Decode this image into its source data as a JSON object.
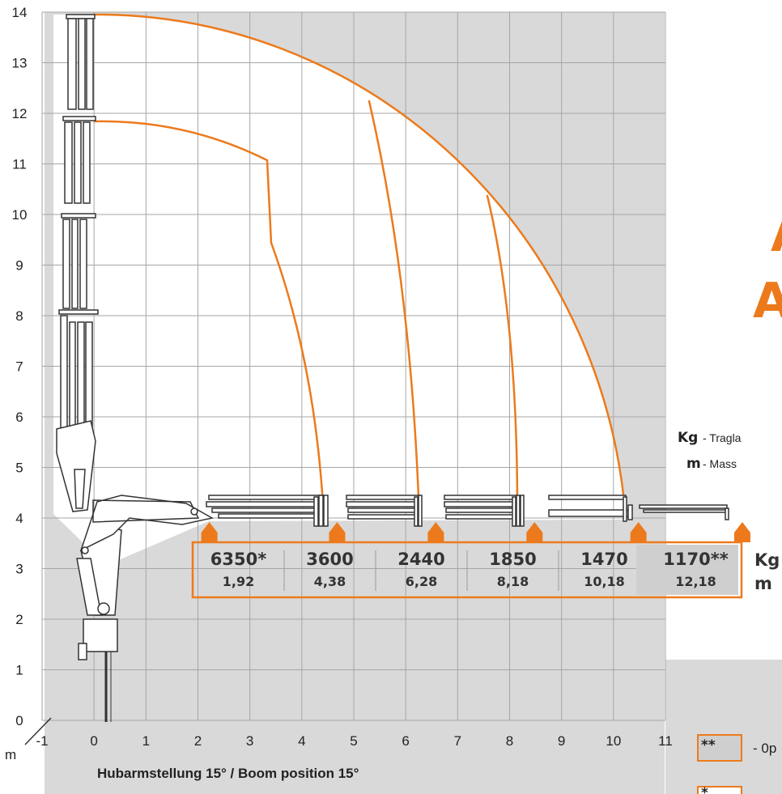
{
  "chart_data": {
    "type": "load-chart",
    "caption": "Hubarmstellung 15° / Boom position 15°",
    "axis_unit": "m",
    "x_ticks": [
      "-1",
      "0",
      "1",
      "2",
      "3",
      "4",
      "5",
      "6",
      "7",
      "8",
      "9",
      "10",
      "11"
    ],
    "y_ticks": [
      "0",
      "1",
      "2",
      "3",
      "4",
      "5",
      "6",
      "7",
      "8",
      "9",
      "10",
      "11",
      "12",
      "13",
      "14"
    ],
    "xlim": [
      -1,
      11
    ],
    "ylim": [
      0,
      14
    ],
    "grid": true,
    "capacities": [
      {
        "kg": "6350*",
        "m": "1,92",
        "reach_m": 1.92
      },
      {
        "kg": "3600",
        "m": "4,38",
        "reach_m": 4.38
      },
      {
        "kg": "2440",
        "m": "6,28",
        "reach_m": 6.28
      },
      {
        "kg": "1850",
        "m": "8,18",
        "reach_m": 8.18
      },
      {
        "kg": "1470",
        "m": "10,18",
        "reach_m": 10.18
      },
      {
        "kg": "1170**",
        "m": "12,18",
        "reach_m": 12.18
      }
    ],
    "row_labels": {
      "kg": "Kg",
      "m": "m"
    }
  },
  "legend": {
    "kg_symbol": "Kg",
    "kg_text": "- Tragla",
    "m_symbol": "m",
    "m_text": "- Mass",
    "double_star": "**",
    "double_star_text": "- 0p",
    "single_star": "*"
  },
  "brand_partial": "A",
  "colors": {
    "accent": "#ec7a1c",
    "grid_bg": "#d9d9d9",
    "grid_line": "#a6a6a6",
    "shaded_cell": "#cfcfcf",
    "text": "#222222"
  }
}
